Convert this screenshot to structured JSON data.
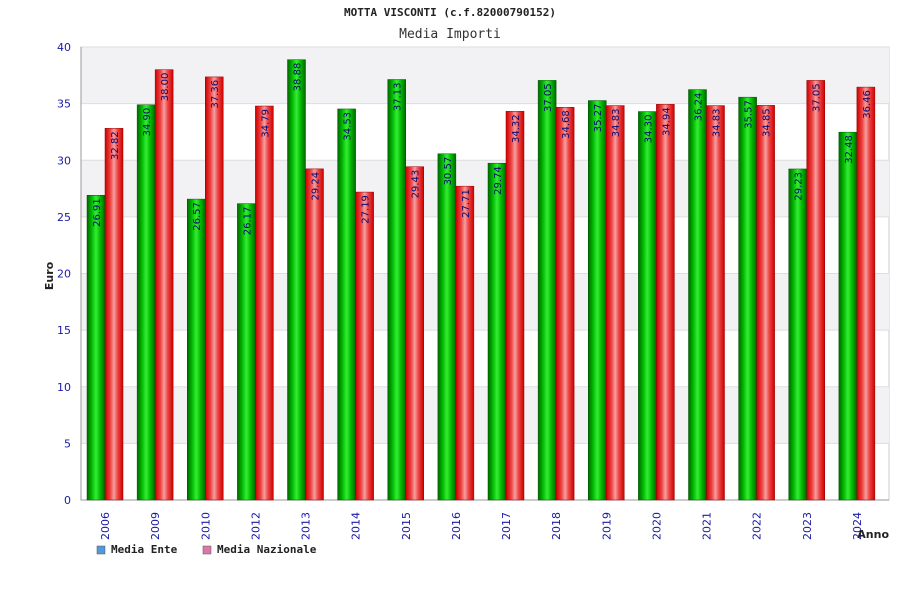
{
  "chart_data": {
    "type": "bar",
    "title": "MOTTA VISCONTI (c.f.82000790152)",
    "subtitle": "Media Importi",
    "xlabel": "Anno",
    "ylabel": "Euro",
    "ylim": [
      0,
      40
    ],
    "yticks": [
      "0",
      "5",
      "10",
      "15",
      "20",
      "25",
      "30",
      "35",
      "40"
    ],
    "categories": [
      "2006",
      "2009",
      "2010",
      "2012",
      "2013",
      "2014",
      "2015",
      "2016",
      "2017",
      "2018",
      "2019",
      "2020",
      "2021",
      "2022",
      "2023",
      "2024"
    ],
    "series": [
      {
        "name": "Media Ente",
        "color": "#00aa00",
        "legend_color": "#5599dd",
        "values": [
          26.91,
          34.9,
          26.57,
          26.17,
          38.88,
          34.53,
          37.13,
          30.57,
          29.74,
          37.05,
          35.27,
          34.3,
          36.24,
          35.57,
          29.23,
          32.48
        ],
        "labels": [
          "26.91",
          "34.90",
          "26.57",
          "26.17",
          "38.88",
          "34.53",
          "37.13",
          "30.57",
          "29.74",
          "37.05",
          "35.27",
          "34.30",
          "36.24",
          "35.57",
          "29.23",
          "32.48"
        ]
      },
      {
        "name": "Media Nazionale",
        "color": "#dd0000",
        "legend_color": "#dd77aa",
        "values": [
          32.82,
          38.0,
          37.36,
          34.79,
          29.24,
          27.19,
          29.43,
          27.71,
          34.32,
          34.68,
          34.83,
          34.94,
          34.83,
          34.85,
          37.05,
          36.46
        ],
        "labels": [
          "32.82",
          "38.00",
          "37.36",
          "34.79",
          "29.24",
          "27.19",
          "29.43",
          "27.71",
          "34.32",
          "34.68",
          "34.83",
          "34.94",
          "34.83",
          "34.85",
          "37.05",
          "36.46"
        ]
      }
    ],
    "legend_position": "bottom-left",
    "grid": true
  }
}
